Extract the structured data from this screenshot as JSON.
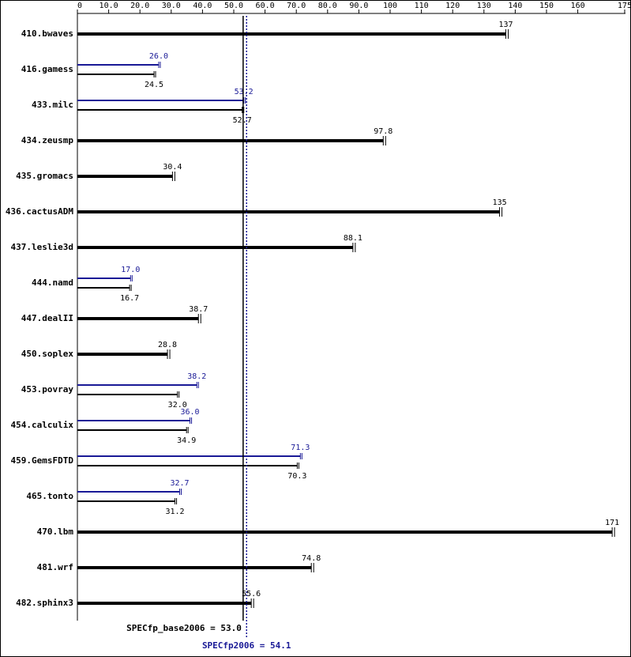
{
  "chart_data": {
    "type": "bar",
    "orientation": "horizontal",
    "categories": [
      "410.bwaves",
      "416.gamess",
      "433.milc",
      "434.zeusmp",
      "435.gromacs",
      "436.cactusADM",
      "437.leslie3d",
      "444.namd",
      "447.dealII",
      "450.soplex",
      "453.povray",
      "454.calculix",
      "459.GemsFDTD",
      "465.tonto",
      "470.lbm",
      "481.wrf",
      "482.sphinx3"
    ],
    "series": [
      {
        "color": "#000000",
        "values": [
          137,
          24.5,
          52.7,
          97.8,
          30.4,
          135,
          88.1,
          16.7,
          38.7,
          28.8,
          32.0,
          34.9,
          70.3,
          31.2,
          171,
          74.8,
          55.6
        ],
        "value_labels": [
          "137",
          "24.5",
          "52.7",
          "97.8",
          "30.4",
          "135",
          "88.1",
          "16.7",
          "38.7",
          "28.8",
          "32.0",
          "34.9",
          "70.3",
          "31.2",
          "171",
          "74.8",
          "55.6"
        ]
      },
      {
        "color": "#191996",
        "values": [
          null,
          26.0,
          53.2,
          null,
          null,
          null,
          null,
          17.0,
          null,
          null,
          38.2,
          36.0,
          71.3,
          32.7,
          null,
          null,
          null
        ],
        "value_labels": [
          null,
          "26.0",
          "53.2",
          null,
          null,
          null,
          null,
          "17.0",
          null,
          null,
          "38.2",
          "36.0",
          "71.3",
          "32.7",
          null,
          null,
          null
        ]
      }
    ],
    "xlim": [
      0,
      175
    ],
    "xticks": [
      0,
      {
        "value": 10,
        "label": "10.0"
      },
      {
        "value": 20,
        "label": "20.0"
      },
      {
        "value": 30,
        "label": "30.0"
      },
      {
        "value": 40,
        "label": "40.0"
      },
      {
        "value": 50,
        "label": "50.0"
      },
      {
        "value": 60,
        "label": "60.0"
      },
      {
        "value": 70,
        "label": "70.0"
      },
      {
        "value": 80,
        "label": "80.0"
      },
      {
        "value": 90,
        "label": "90.0"
      },
      100,
      110,
      120,
      130,
      140,
      150,
      160,
      175
    ],
    "reference_lines": [
      {
        "value": 53.0,
        "label": "SPECfp_base2006 = 53.0",
        "color": "#000000",
        "style": "solid"
      },
      {
        "value": 54.1,
        "label": "SPECfp2006 = 54.1",
        "color": "#191996",
        "style": "dotted"
      }
    ]
  }
}
